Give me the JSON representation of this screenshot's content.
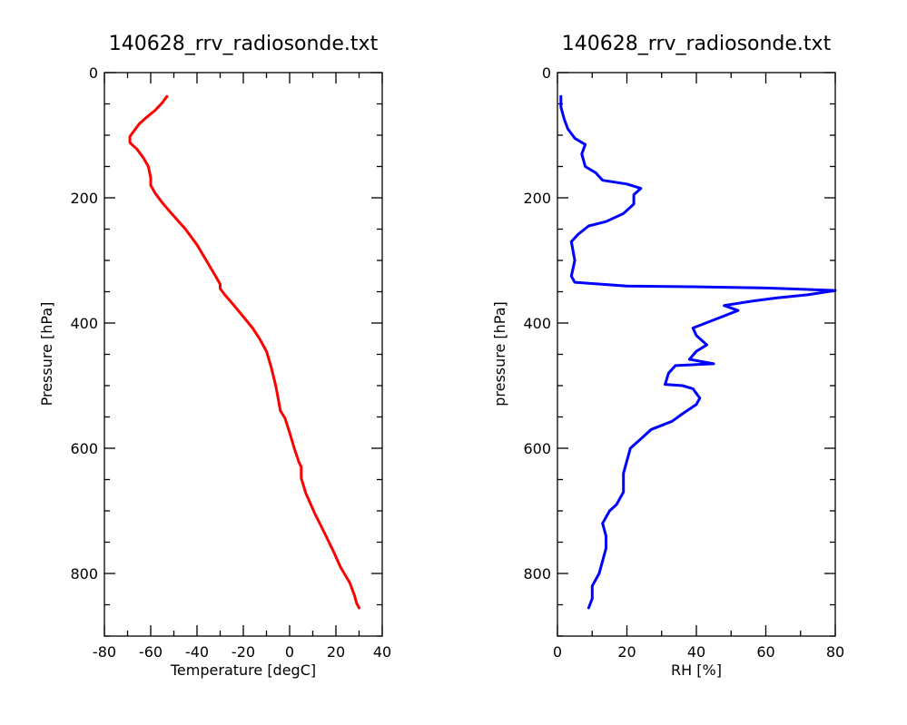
{
  "chart_data": [
    {
      "type": "line",
      "title": "140628_rrv_radiosonde.txt",
      "xlabel": "Temperature [degC]",
      "ylabel": "Pressure [hPa]",
      "xlim": [
        -80,
        40
      ],
      "ylim": [
        900,
        0
      ],
      "x_ticks": [
        -80,
        -60,
        -40,
        -20,
        0,
        20,
        40
      ],
      "y_ticks": [
        0,
        200,
        400,
        600,
        800
      ],
      "x_minor_step": 10,
      "y_minor_step": 50,
      "grid": false,
      "series": [
        {
          "color": "#ff0000",
          "points": [
            [
              30,
              855
            ],
            [
              29,
              848
            ],
            [
              28,
              835
            ],
            [
              26,
              815
            ],
            [
              22,
              790
            ],
            [
              19,
              765
            ],
            [
              15,
              735
            ],
            [
              11,
              705
            ],
            [
              7,
              672
            ],
            [
              5,
              648
            ],
            [
              5,
              630
            ],
            [
              4,
              622
            ],
            [
              2,
              600
            ],
            [
              0,
              575
            ],
            [
              -2,
              552
            ],
            [
              -4,
              540
            ],
            [
              -5,
              520
            ],
            [
              -6,
              500
            ],
            [
              -8,
              470
            ],
            [
              -10,
              445
            ],
            [
              -13,
              425
            ],
            [
              -16,
              408
            ],
            [
              -20,
              390
            ],
            [
              -24,
              372
            ],
            [
              -28,
              355
            ],
            [
              -30,
              345
            ],
            [
              -30,
              338
            ],
            [
              -32,
              325
            ],
            [
              -36,
              300
            ],
            [
              -40,
              275
            ],
            [
              -45,
              250
            ],
            [
              -51,
              225
            ],
            [
              -55,
              208
            ],
            [
              -58,
              193
            ],
            [
              -60,
              180
            ],
            [
              -60,
              168
            ],
            [
              -61,
              150
            ],
            [
              -63,
              137
            ],
            [
              -66,
              122
            ],
            [
              -69,
              112
            ],
            [
              -69,
              102
            ],
            [
              -67,
              92
            ],
            [
              -65,
              82
            ],
            [
              -62,
              72
            ],
            [
              -58,
              60
            ],
            [
              -55,
              48
            ],
            [
              -53,
              38
            ]
          ]
        }
      ]
    },
    {
      "type": "line",
      "title": "140628_rrv_radiosonde.txt",
      "xlabel": "RH [%]",
      "ylabel": "pressure [hPa]",
      "xlim": [
        0,
        80
      ],
      "ylim": [
        900,
        0
      ],
      "x_ticks": [
        0,
        20,
        40,
        60,
        80
      ],
      "y_ticks": [
        0,
        200,
        400,
        600,
        800
      ],
      "x_minor_step": 10,
      "y_minor_step": 50,
      "grid": false,
      "series": [
        {
          "color": "#0000ff",
          "points": [
            [
              9,
              855
            ],
            [
              10,
              840
            ],
            [
              10,
              820
            ],
            [
              12,
              800
            ],
            [
              13,
              780
            ],
            [
              14,
              760
            ],
            [
              14,
              740
            ],
            [
              13,
              720
            ],
            [
              15,
              700
            ],
            [
              17,
              690
            ],
            [
              19,
              670
            ],
            [
              19,
              640
            ],
            [
              20,
              620
            ],
            [
              21,
              600
            ],
            [
              24,
              585
            ],
            [
              27,
              570
            ],
            [
              33,
              557
            ],
            [
              36,
              545
            ],
            [
              40,
              530
            ],
            [
              41,
              520
            ],
            [
              39,
              505
            ],
            [
              36,
              500
            ],
            [
              31,
              498
            ],
            [
              32,
              480
            ],
            [
              34,
              468
            ],
            [
              45,
              465
            ],
            [
              38,
              458
            ],
            [
              40,
              445
            ],
            [
              43,
              435
            ],
            [
              40,
              420
            ],
            [
              39,
              408
            ],
            [
              45,
              395
            ],
            [
              52,
              380
            ],
            [
              48,
              372
            ],
            [
              56,
              365
            ],
            [
              63,
              360
            ],
            [
              72,
              355
            ],
            [
              80,
              348
            ],
            [
              60,
              344
            ],
            [
              38,
              342
            ],
            [
              20,
              341
            ],
            [
              5,
              335
            ],
            [
              4,
              325
            ],
            [
              5,
              300
            ],
            [
              4,
              270
            ],
            [
              6,
              258
            ],
            [
              9,
              245
            ],
            [
              14,
              238
            ],
            [
              19,
              225
            ],
            [
              22,
              210
            ],
            [
              22,
              195
            ],
            [
              24,
              185
            ],
            [
              20,
              178
            ],
            [
              13,
              172
            ],
            [
              11,
              160
            ],
            [
              8,
              150
            ],
            [
              7,
              130
            ],
            [
              8,
              115
            ],
            [
              5,
              105
            ],
            [
              3,
              90
            ],
            [
              2,
              75
            ],
            [
              1,
              55
            ],
            [
              1,
              38
            ]
          ]
        }
      ]
    }
  ]
}
